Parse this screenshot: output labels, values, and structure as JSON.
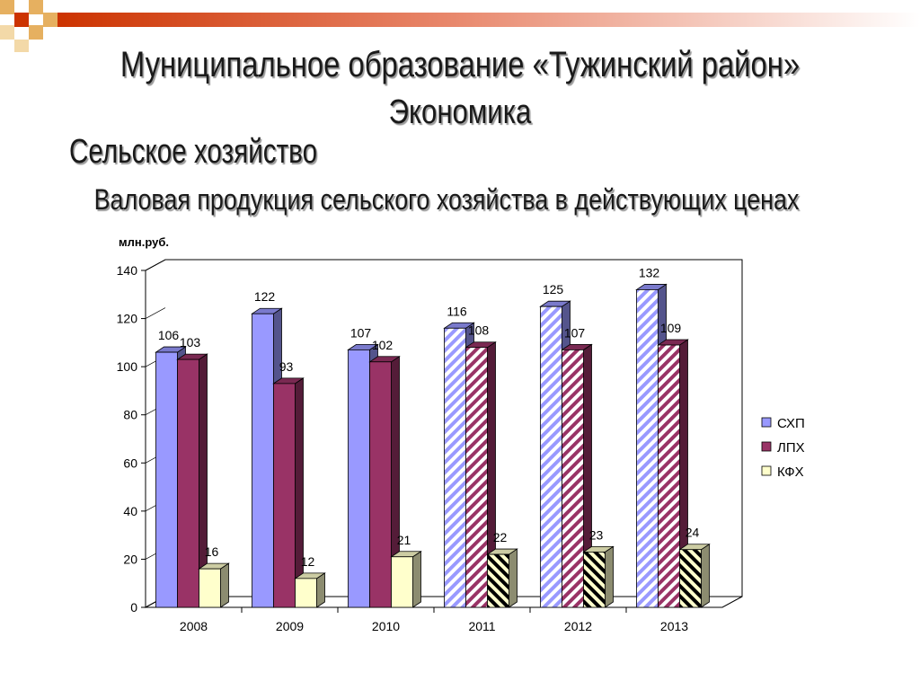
{
  "slide": {
    "title_line1": "Муниципальное образование «Тужинский район»",
    "title_line2": "Экономика",
    "section": "Сельское хозяйство",
    "chart_title": "Валовая продукция сельского хозяйства в действующих ценах"
  },
  "chart_data": {
    "type": "bar",
    "title": "Валовая продукция сельского хозяйства в действующих ценах",
    "ylabel": "млн.руб.",
    "xlabel": "",
    "categories": [
      "2008",
      "2009",
      "2010",
      "2011",
      "2012",
      "2013"
    ],
    "series": [
      {
        "name": "СХП",
        "values": [
          106,
          122,
          107,
          116,
          125,
          132
        ],
        "color": "#9999ff"
      },
      {
        "name": "ЛПХ",
        "values": [
          103,
          93,
          102,
          108,
          107,
          109
        ],
        "color": "#993366"
      },
      {
        "name": "КФХ",
        "values": [
          16,
          12,
          21,
          22,
          23,
          24
        ],
        "color": "#ffffcc"
      }
    ],
    "ylim": [
      0,
      140
    ],
    "yticks": [
      0,
      20,
      40,
      60,
      80,
      100,
      120,
      140
    ],
    "hatched_from_category": "2011",
    "legend_position": "right",
    "grid": false
  }
}
